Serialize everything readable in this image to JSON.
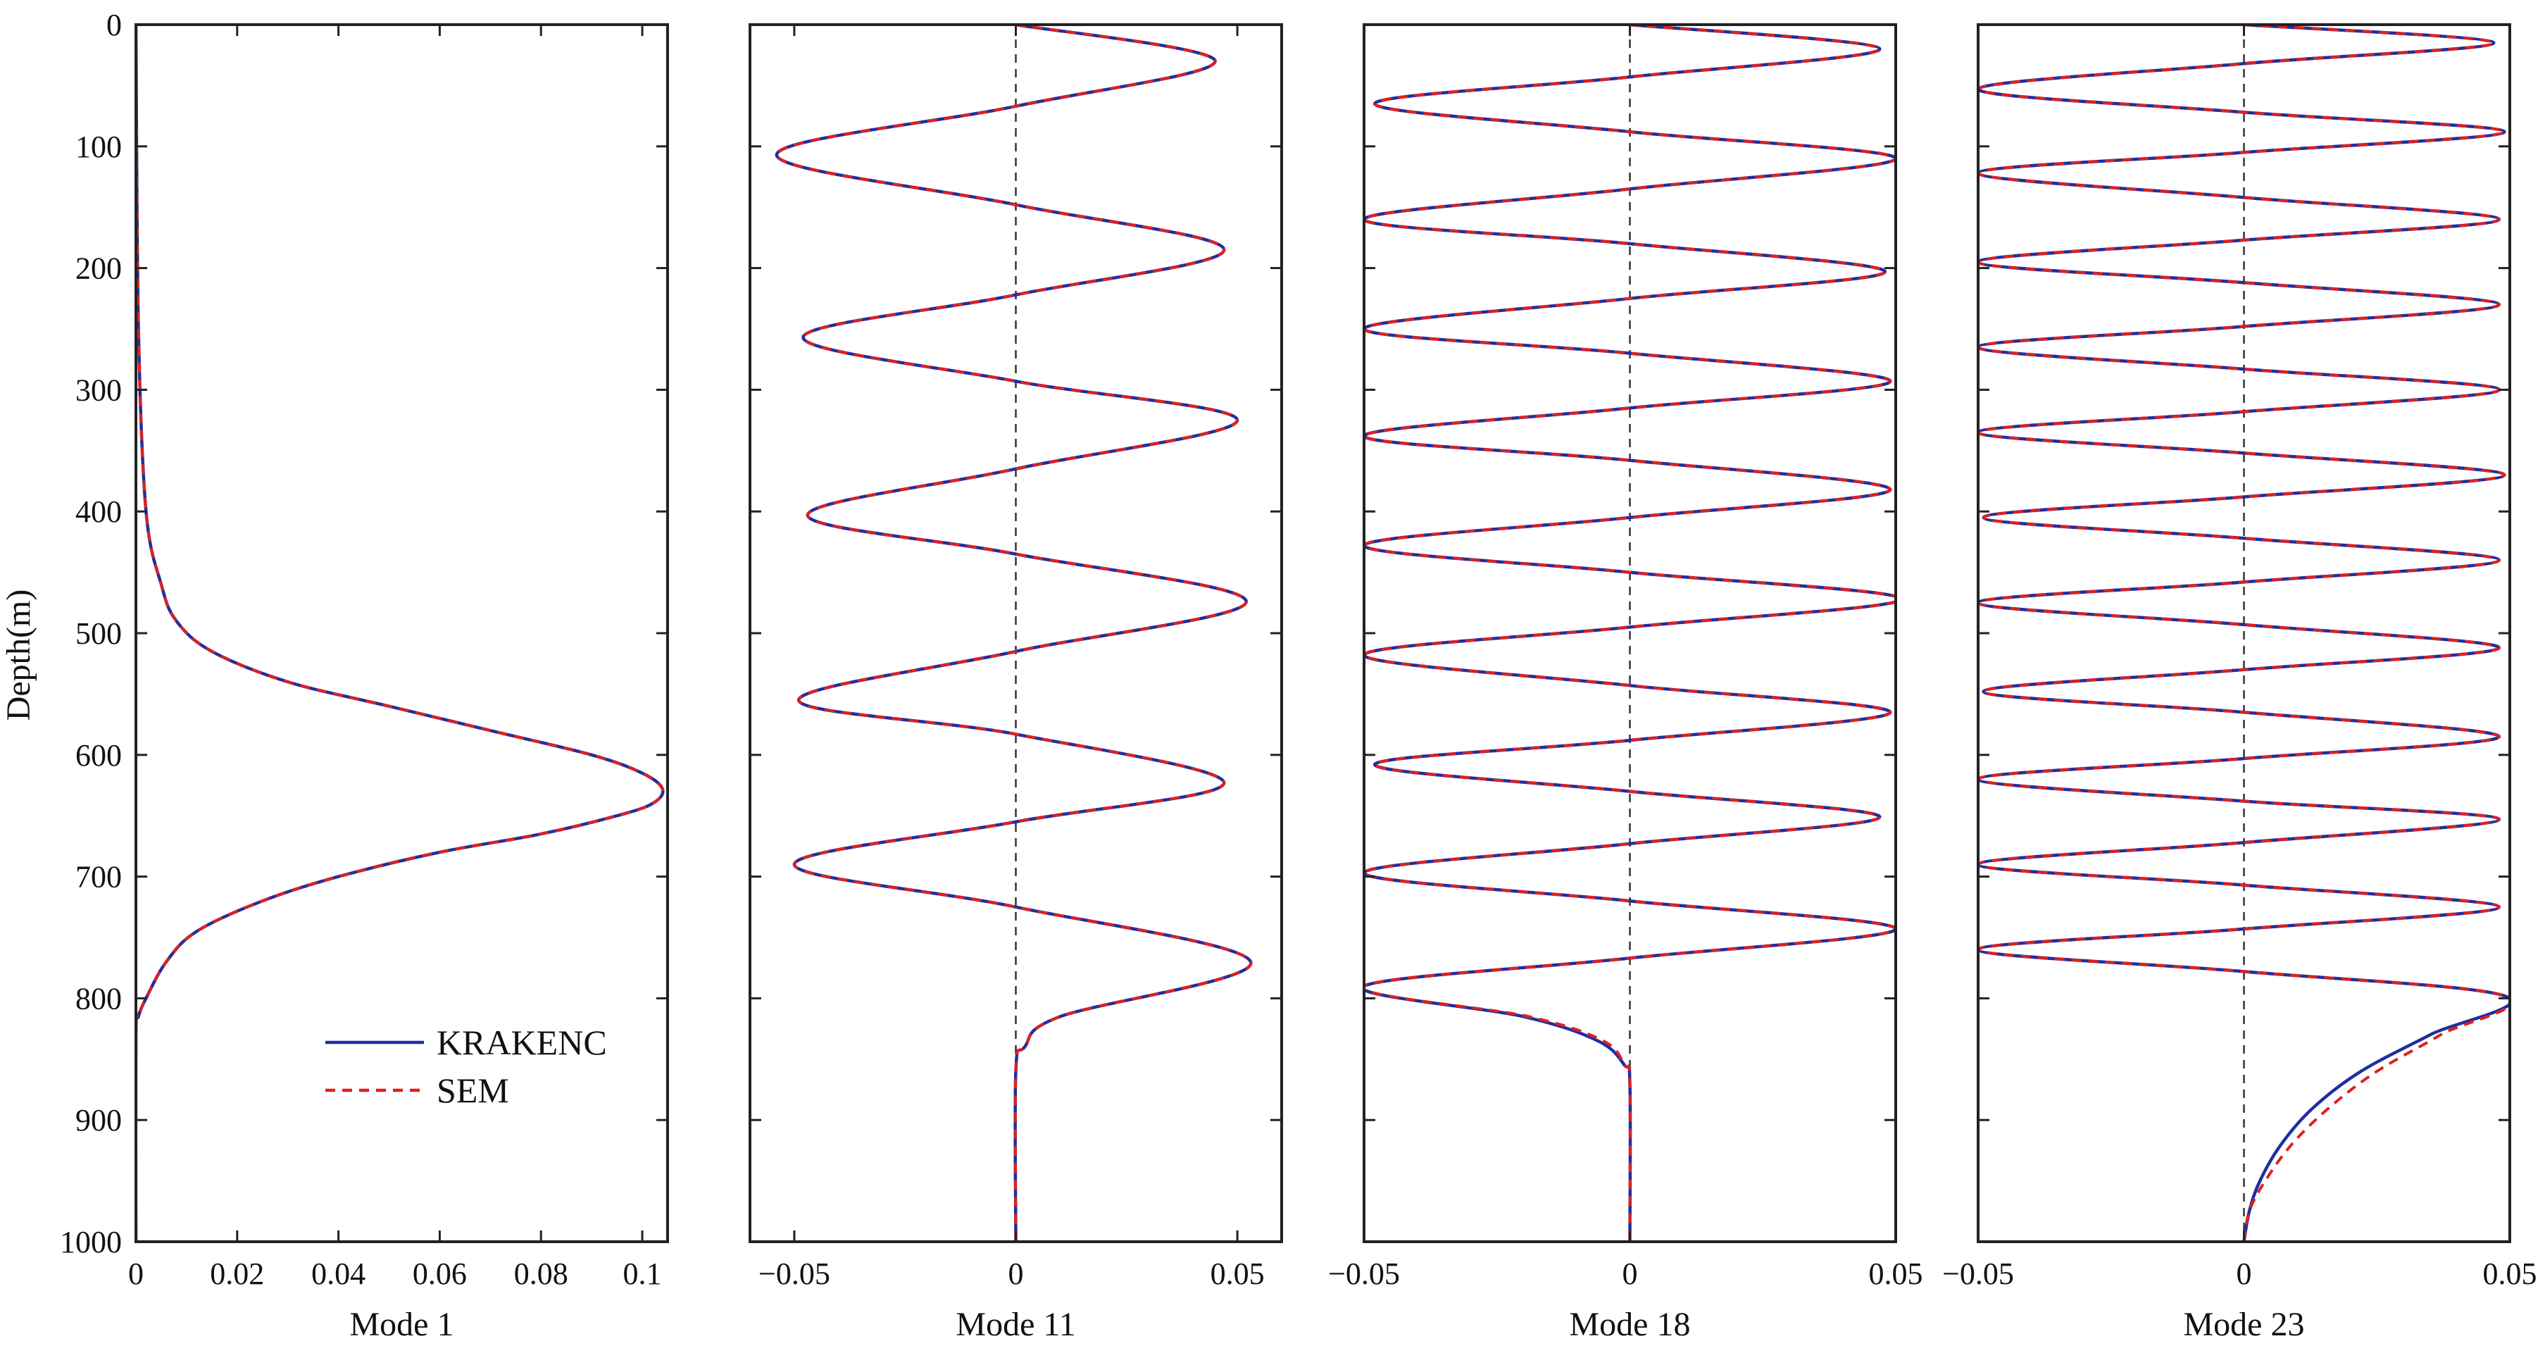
{
  "figure": {
    "ylabel": "Depth(m)"
  },
  "chart_data": [
    {
      "type": "line",
      "xlabel": "Mode 1",
      "ylabel": "Depth(m)",
      "xlim": [
        0,
        0.105
      ],
      "ylim": [
        0,
        1000
      ],
      "y_reversed": true,
      "xticks": [
        0,
        0.02,
        0.04,
        0.06,
        0.08,
        0.1
      ],
      "xtick_labels": [
        "0",
        "0.02",
        "0.04",
        "0.06",
        "0.08",
        "0.1"
      ],
      "yticks": [
        0,
        100,
        200,
        300,
        400,
        500,
        600,
        700,
        800,
        900,
        1000
      ],
      "ytick_labels": [
        "0",
        "100",
        "200",
        "300",
        "400",
        "500",
        "600",
        "700",
        "800",
        "900",
        "1000"
      ],
      "zero_line": false,
      "legend": {
        "location": "lower-right",
        "entries": [
          "KRAKENC",
          "SEM"
        ]
      },
      "series": [
        {
          "name": "KRAKENC",
          "style": "solid",
          "color": "#1f2fa0",
          "x": [
            0,
            0.0005,
            0.002,
            0.005,
            0.008,
            0.015,
            0.03,
            0.05,
            0.07,
            0.09,
            0.1,
            0.104,
            0.102,
            0.095,
            0.08,
            0.06,
            0.04,
            0.025,
            0.012,
            0.006,
            0.002,
            0.0005,
            0,
            0
          ],
          "y": [
            0,
            250,
            400,
            460,
            490,
            515,
            540,
            560,
            580,
            600,
            615,
            628,
            640,
            650,
            665,
            680,
            700,
            720,
            745,
            770,
            800,
            815,
            830,
            1000
          ]
        },
        {
          "name": "SEM",
          "style": "dashed",
          "color": "#e01f1f",
          "x": [
            0,
            0.0005,
            0.002,
            0.005,
            0.008,
            0.015,
            0.03,
            0.05,
            0.07,
            0.09,
            0.1,
            0.104,
            0.102,
            0.095,
            0.08,
            0.06,
            0.04,
            0.025,
            0.012,
            0.006,
            0.002,
            0.0005,
            0,
            0
          ],
          "y": [
            0,
            250,
            400,
            460,
            490,
            515,
            540,
            560,
            580,
            600,
            615,
            628,
            640,
            650,
            665,
            680,
            700,
            720,
            745,
            770,
            800,
            815,
            830,
            1000
          ]
        }
      ]
    },
    {
      "type": "line",
      "xlabel": "Mode 11",
      "xlim": [
        -0.06,
        0.06
      ],
      "ylim": [
        0,
        1000
      ],
      "y_reversed": true,
      "xticks": [
        -0.05,
        0,
        0.05
      ],
      "xtick_labels": [
        "−0.05",
        "0",
        "0.05"
      ],
      "zero_line": true,
      "series": [
        {
          "name": "KRAKENC",
          "style": "solid",
          "color": "#1f2fa0",
          "x": [
            0,
            0.045,
            0,
            -0.054,
            0,
            0.047,
            0,
            -0.048,
            0,
            0.05,
            0,
            -0.047,
            0,
            0.052,
            0,
            -0.049,
            0,
            0.047,
            0,
            -0.05,
            0,
            0.053,
            0.01,
            0.002,
            0,
            0
          ],
          "y": [
            0,
            30,
            67,
            107,
            148,
            185,
            222,
            257,
            293,
            325,
            365,
            403,
            435,
            474,
            515,
            555,
            583,
            623,
            655,
            690,
            725,
            770,
            815,
            840,
            860,
            1000
          ]
        },
        {
          "name": "SEM",
          "style": "dashed",
          "color": "#e01f1f",
          "x": [
            0,
            0.045,
            0,
            -0.054,
            0,
            0.047,
            0,
            -0.048,
            0,
            0.05,
            0,
            -0.047,
            0,
            0.052,
            0,
            -0.049,
            0,
            0.047,
            0,
            -0.05,
            0,
            0.053,
            0.01,
            0.002,
            0,
            0
          ],
          "y": [
            0,
            30,
            67,
            107,
            148,
            185,
            222,
            257,
            293,
            325,
            365,
            403,
            435,
            474,
            515,
            555,
            583,
            623,
            655,
            690,
            725,
            770,
            815,
            840,
            860,
            1000
          ]
        }
      ]
    },
    {
      "type": "line",
      "xlabel": "Mode 18",
      "xlim": [
        -0.05,
        0.05
      ],
      "ylim": [
        0,
        1000
      ],
      "y_reversed": true,
      "xticks": [
        -0.05,
        0,
        0.05
      ],
      "xtick_labels": [
        "−0.05",
        "0",
        "0.05"
      ],
      "zero_line": true,
      "series": [
        {
          "name": "KRAKENC",
          "style": "solid",
          "color": "#1f2fa0",
          "x": [
            0,
            0.047,
            0,
            -0.048,
            0,
            0.05,
            0,
            -0.05,
            0,
            0.048,
            0,
            -0.05,
            0,
            0.049,
            0,
            -0.05,
            0,
            0.049,
            0,
            -0.05,
            0,
            0.051,
            0,
            -0.05,
            0,
            0.049,
            0,
            -0.048,
            0,
            0.047,
            0,
            -0.05,
            0,
            0.05,
            0,
            -0.05,
            -0.02,
            -0.006,
            -0.001,
            0,
            0
          ],
          "y": [
            0,
            20,
            43,
            65,
            88,
            110,
            135,
            160,
            180,
            203,
            225,
            250,
            270,
            293,
            315,
            338,
            358,
            382,
            405,
            428,
            450,
            472,
            495,
            518,
            543,
            565,
            588,
            608,
            630,
            651,
            673,
            697,
            720,
            743,
            767,
            790,
            815,
            835,
            855,
            870,
            1000
          ]
        },
        {
          "name": "SEM",
          "style": "dashed",
          "color": "#e01f1f",
          "x": [
            0,
            0.047,
            0,
            -0.048,
            0,
            0.05,
            0,
            -0.05,
            0,
            0.048,
            0,
            -0.05,
            0,
            0.049,
            0,
            -0.05,
            0,
            0.049,
            0,
            -0.05,
            0,
            0.051,
            0,
            -0.05,
            0,
            0.049,
            0,
            -0.048,
            0,
            0.047,
            0,
            -0.05,
            0,
            0.05,
            0,
            -0.05,
            -0.019,
            -0.005,
            -0.001,
            0,
            0
          ],
          "y": [
            0,
            20,
            43,
            65,
            88,
            110,
            135,
            160,
            180,
            203,
            225,
            250,
            270,
            293,
            315,
            338,
            358,
            382,
            405,
            428,
            450,
            472,
            495,
            518,
            543,
            565,
            588,
            608,
            630,
            651,
            673,
            697,
            720,
            743,
            767,
            790,
            815,
            835,
            855,
            870,
            1000
          ]
        }
      ]
    },
    {
      "type": "line",
      "xlabel": "Mode 23",
      "xlim": [
        -0.05,
        0.05
      ],
      "ylim": [
        0,
        1000
      ],
      "y_reversed": true,
      "xticks": [
        -0.05,
        0,
        0.05
      ],
      "xtick_labels": [
        "−0.05",
        "0",
        "0.05"
      ],
      "zero_line": true,
      "series": [
        {
          "name": "KRAKENC",
          "style": "solid",
          "color": "#1f2fa0",
          "x": [
            0,
            0.047,
            0,
            -0.05,
            0,
            0.049,
            0,
            -0.05,
            0,
            0.048,
            0,
            -0.05,
            0,
            0.048,
            0,
            -0.05,
            0,
            0.048,
            0,
            -0.05,
            0,
            0.049,
            0,
            -0.049,
            0,
            0.048,
            0,
            -0.05,
            0,
            0.048,
            0,
            -0.049,
            0,
            0.048,
            0,
            -0.05,
            0,
            0.048,
            0,
            -0.05,
            0,
            0.048,
            0,
            -0.05,
            0,
            0.049,
            0.035,
            0.022,
            0.013,
            0.007,
            0.003,
            0.001,
            0
          ],
          "y": [
            0,
            15,
            32,
            53,
            72,
            88,
            105,
            122,
            142,
            160,
            177,
            195,
            212,
            230,
            248,
            265,
            283,
            300,
            318,
            335,
            352,
            370,
            388,
            405,
            422,
            440,
            458,
            475,
            493,
            512,
            530,
            548,
            565,
            585,
            603,
            620,
            638,
            653,
            672,
            690,
            707,
            725,
            743,
            760,
            778,
            798,
            830,
            860,
            890,
            920,
            950,
            975,
            1000
          ]
        },
        {
          "name": "SEM",
          "style": "dashed",
          "color": "#e01f1f",
          "x": [
            0,
            0.047,
            0,
            -0.05,
            0,
            0.049,
            0,
            -0.05,
            0,
            0.048,
            0,
            -0.05,
            0,
            0.048,
            0,
            -0.05,
            0,
            0.048,
            0,
            -0.05,
            0,
            0.049,
            0,
            -0.049,
            0,
            0.048,
            0,
            -0.05,
            0,
            0.048,
            0,
            -0.049,
            0,
            0.048,
            0,
            -0.05,
            0,
            0.048,
            0,
            -0.05,
            0,
            0.048,
            0,
            -0.05,
            0,
            0.049,
            0.037,
            0.025,
            0.016,
            0.009,
            0.004,
            0.001,
            0
          ],
          "y": [
            0,
            15,
            32,
            53,
            72,
            88,
            105,
            122,
            142,
            160,
            177,
            195,
            212,
            230,
            248,
            265,
            283,
            300,
            318,
            335,
            352,
            370,
            388,
            405,
            422,
            440,
            458,
            475,
            493,
            512,
            530,
            548,
            565,
            585,
            603,
            620,
            638,
            653,
            672,
            690,
            707,
            725,
            743,
            760,
            778,
            798,
            830,
            860,
            890,
            920,
            950,
            975,
            1000
          ]
        }
      ]
    }
  ]
}
